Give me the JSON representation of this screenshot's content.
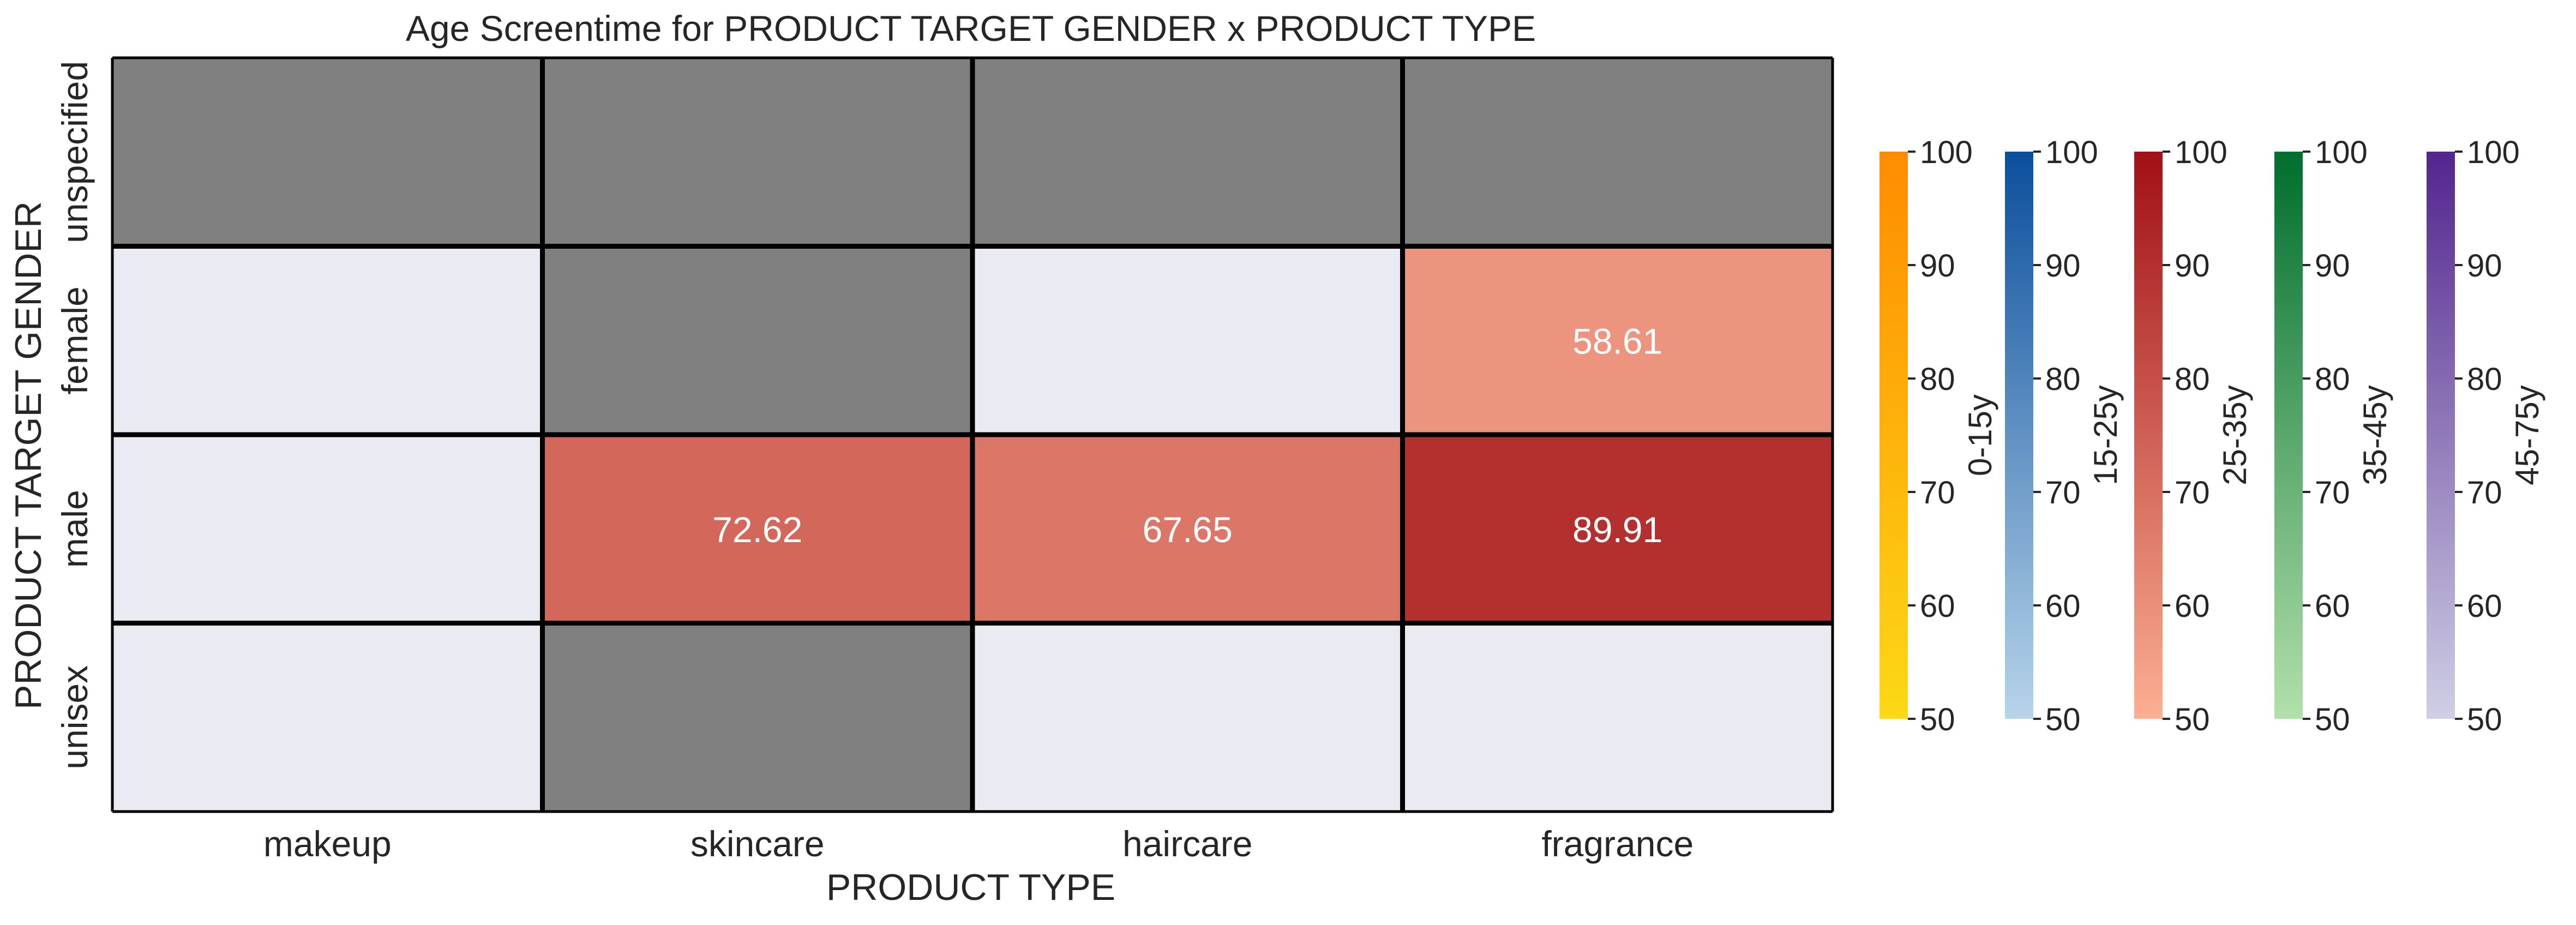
{
  "chart_data": {
    "type": "heatmap",
    "title": "Age Screentime for PRODUCT TARGET GENDER x PRODUCT TYPE",
    "xlabel": "PRODUCT TYPE",
    "ylabel": "PRODUCT TARGET GENDER",
    "x_categories": [
      "makeup",
      "skincare",
      "haircare",
      "fragrance"
    ],
    "y_categories": [
      "unspecified",
      "female",
      "male",
      "unisex"
    ],
    "cells": [
      {
        "row": "unspecified",
        "col": "makeup",
        "state": "missing"
      },
      {
        "row": "unspecified",
        "col": "skincare",
        "state": "missing"
      },
      {
        "row": "unspecified",
        "col": "haircare",
        "state": "missing"
      },
      {
        "row": "unspecified",
        "col": "fragrance",
        "state": "missing"
      },
      {
        "row": "female",
        "col": "makeup",
        "state": "empty"
      },
      {
        "row": "female",
        "col": "skincare",
        "state": "missing"
      },
      {
        "row": "female",
        "col": "haircare",
        "state": "empty"
      },
      {
        "row": "female",
        "col": "fragrance",
        "state": "value",
        "value": 58.61,
        "label": "58.61",
        "group": "25-35y"
      },
      {
        "row": "male",
        "col": "makeup",
        "state": "empty"
      },
      {
        "row": "male",
        "col": "skincare",
        "state": "value",
        "value": 72.62,
        "label": "72.62",
        "group": "25-35y"
      },
      {
        "row": "male",
        "col": "haircare",
        "state": "value",
        "value": 67.65,
        "label": "67.65",
        "group": "25-35y"
      },
      {
        "row": "male",
        "col": "fragrance",
        "state": "value",
        "value": 89.91,
        "label": "89.91",
        "group": "25-35y"
      },
      {
        "row": "unisex",
        "col": "makeup",
        "state": "empty"
      },
      {
        "row": "unisex",
        "col": "skincare",
        "state": "missing"
      },
      {
        "row": "unisex",
        "col": "haircare",
        "state": "empty"
      },
      {
        "row": "unisex",
        "col": "fragrance",
        "state": "empty"
      }
    ],
    "colors": {
      "missing": "#808080",
      "empty": "#eaeaf2",
      "grid": "#000000"
    },
    "colorbars": [
      {
        "label": "0-15y",
        "range": [
          50,
          100
        ],
        "ticks": [
          "50",
          "60",
          "70",
          "80",
          "90",
          "100"
        ],
        "colors": [
          "#fcd916",
          "#ff8c00"
        ]
      },
      {
        "label": "15-25y",
        "range": [
          50,
          100
        ],
        "ticks": [
          "50",
          "60",
          "70",
          "80",
          "90",
          "100"
        ],
        "colors": [
          "#b7d4ea",
          "#0b4f9c"
        ]
      },
      {
        "label": "25-35y",
        "range": [
          50,
          100
        ],
        "ticks": [
          "50",
          "60",
          "70",
          "80",
          "90",
          "100"
        ],
        "colors": [
          "#fcaf93",
          "#a11016"
        ]
      },
      {
        "label": "35-45y",
        "range": [
          50,
          100
        ],
        "ticks": [
          "50",
          "60",
          "70",
          "80",
          "90",
          "100"
        ],
        "colors": [
          "#b2e0ab",
          "#006e2e"
        ]
      },
      {
        "label": "45-75y",
        "range": [
          50,
          100
        ],
        "ticks": [
          "50",
          "60",
          "70",
          "80",
          "90",
          "100"
        ],
        "colors": [
          "#cfcfe5",
          "#53258e"
        ]
      }
    ]
  }
}
